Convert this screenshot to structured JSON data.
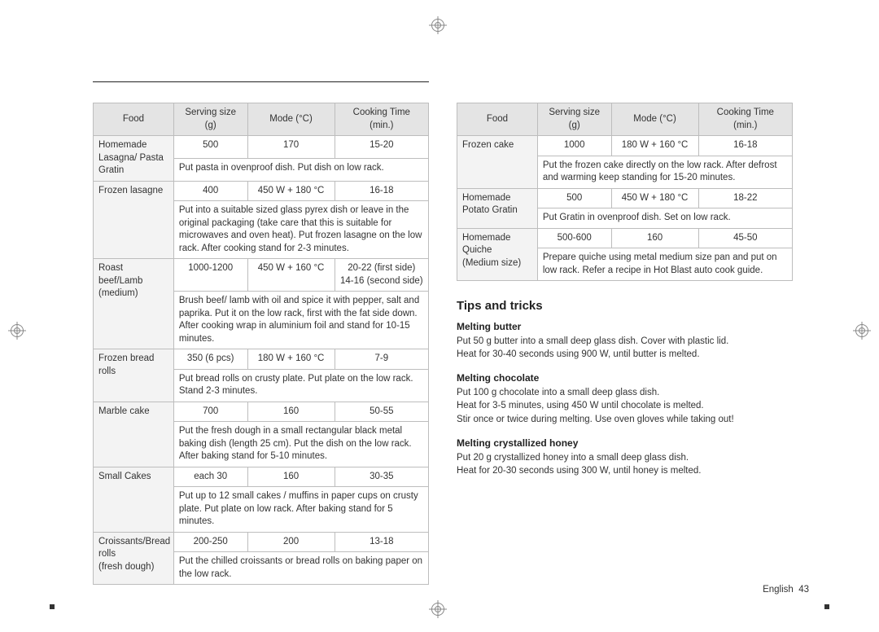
{
  "tables": {
    "headers": [
      "Food",
      "Serving size (g)",
      "Mode (°C)",
      "Cooking Time (min.)"
    ],
    "left": [
      {
        "food": "Homemade Lasagna/ Pasta Gratin",
        "serving": "500",
        "mode": "170",
        "time": "15-20",
        "instr": "Put pasta in ovenproof dish. Put dish on low rack."
      },
      {
        "food": "Frozen lasagne",
        "serving": "400",
        "mode": "450 W + 180 °C",
        "time": "16-18",
        "instr": "Put into a suitable sized glass pyrex dish or leave in the original packaging (take care that this is suitable for microwaves and oven heat). Put frozen lasagne on the low rack. After cooking stand for 2-3 minutes."
      },
      {
        "food": "Roast beef/Lamb (medium)",
        "serving": "1000-1200",
        "mode": "450 W + 160 °C",
        "time": "20-22 (first side)\n14-16 (second side)",
        "instr": "Brush beef/ lamb with oil and spice it with pepper, salt and paprika. Put it on the low rack, first with the fat side down. After cooking wrap in aluminium foil and stand for 10-15 minutes."
      },
      {
        "food": "Frozen bread rolls",
        "serving": "350 (6 pcs)",
        "mode": "180 W + 160 °C",
        "time": "7-9",
        "instr": "Put bread rolls on crusty plate. Put plate on the low rack. Stand 2-3 minutes."
      },
      {
        "food": "Marble cake",
        "serving": "700",
        "mode": "160",
        "time": "50-55",
        "instr": "Put the fresh dough in a small rectangular black metal baking dish (length 25 cm). Put the dish on the low rack. After baking stand for 5-10 minutes."
      },
      {
        "food": "Small Cakes",
        "serving": "each 30",
        "mode": "160",
        "time": "30-35",
        "instr": "Put up to 12 small cakes / muffins in paper cups on crusty plate. Put plate on low rack. After baking stand for 5 minutes."
      },
      {
        "food": "Croissants/Bread rolls\n(fresh dough)",
        "serving": "200-250",
        "mode": "200",
        "time": "13-18",
        "instr": "Put the chilled croissants or bread rolls on baking paper on the low rack."
      }
    ],
    "right": [
      {
        "food": "Frozen cake",
        "serving": "1000",
        "mode": "180 W + 160 °C",
        "time": "16-18",
        "instr": "Put the frozen cake directly on the low rack. After defrost and warming keep standing for 15-20 minutes."
      },
      {
        "food": "Homemade Potato Gratin",
        "serving": "500",
        "mode": "450 W + 180 °C",
        "time": "18-22",
        "instr": "Put Gratin in ovenproof dish. Set on low rack."
      },
      {
        "food": "Homemade Quiche\n(Medium size)",
        "serving": "500-600",
        "mode": "160",
        "time": "45-50",
        "instr": "Prepare quiche using metal medium size pan and put on low rack. Refer a recipe in Hot Blast auto cook guide."
      }
    ]
  },
  "tips_heading": "Tips and tricks",
  "tips": [
    {
      "title": "Melting butter",
      "text": "Put 50 g butter into a small deep glass dish. Cover with plastic lid.\nHeat for 30-40 seconds using 900 W, until butter is melted."
    },
    {
      "title": "Melting chocolate",
      "text": "Put 100 g chocolate into a small deep glass dish.\nHeat for 3-5 minutes, using 450 W until chocolate is melted.\nStir once or twice during melting. Use oven gloves while taking out!"
    },
    {
      "title": "Melting crystallized honey",
      "text": "Put 20 g crystallized honey into a small deep glass dish.\nHeat for 20-30 seconds using 300 W, until honey is melted."
    }
  ],
  "footer": {
    "lang": "English",
    "page": "43"
  }
}
